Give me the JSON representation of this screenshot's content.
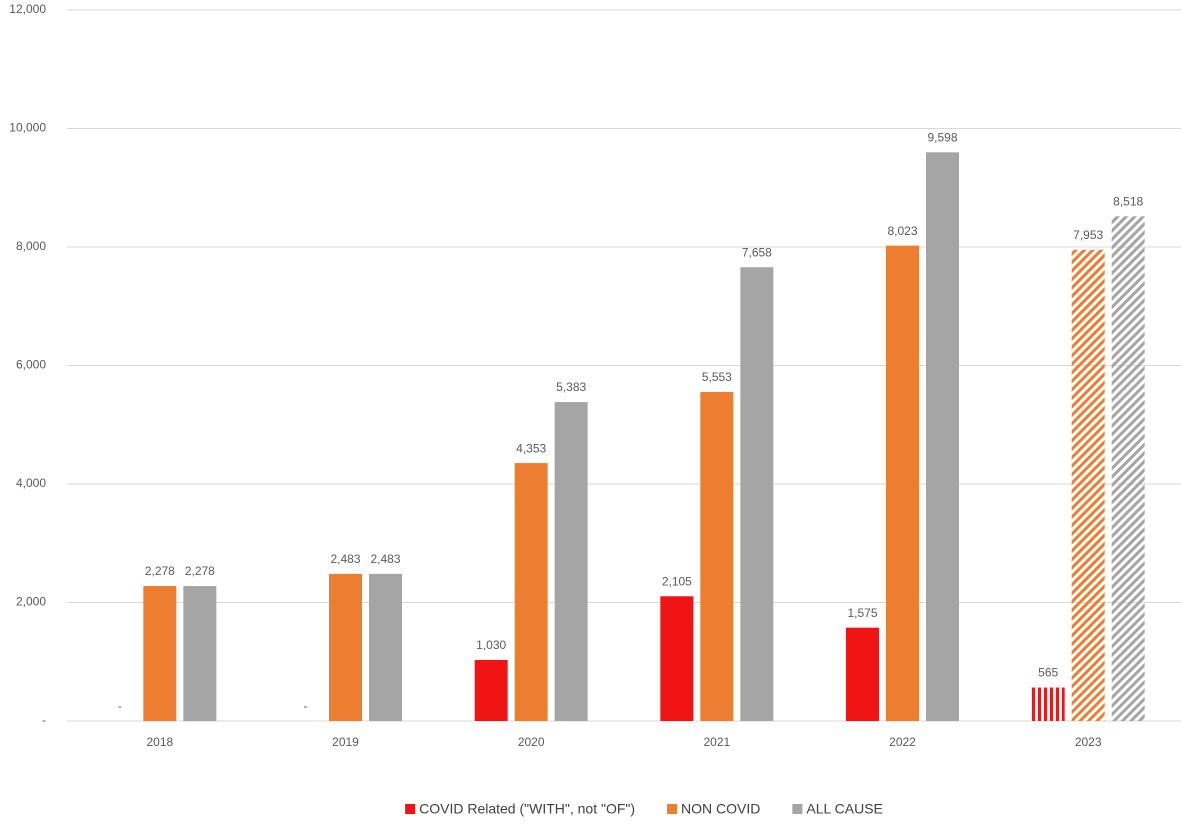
{
  "chart_data": {
    "type": "bar",
    "categories": [
      "2018",
      "2019",
      "2020",
      "2021",
      "2022",
      "2023"
    ],
    "hatched": [
      false,
      false,
      false,
      false,
      false,
      true
    ],
    "series": [
      {
        "name": "COVID Related (\"WITH\", not \"OF\")",
        "color": "#f01414",
        "hatch": "vertical",
        "values": [
          0,
          0,
          1030,
          2105,
          1575,
          565
        ],
        "value_labels": [
          "-",
          "-",
          "1,030",
          "2,105",
          "1,575",
          "565"
        ]
      },
      {
        "name": "NON COVID",
        "color": "#ed7d31",
        "hatch": "diagonal",
        "values": [
          2278,
          2483,
          4353,
          5553,
          8023,
          7953
        ],
        "value_labels": [
          "2,278",
          "2,483",
          "4,353",
          "5,553",
          "8,023",
          "7,953"
        ]
      },
      {
        "name": "ALL CAUSE",
        "color": "#a5a5a5",
        "hatch": "diagonal",
        "values": [
          2278,
          2483,
          5383,
          7658,
          9598,
          8518
        ],
        "value_labels": [
          "2,278",
          "2,483",
          "5,383",
          "7,658",
          "9,598",
          "8,518"
        ]
      }
    ],
    "ylim": [
      0,
      12000
    ],
    "yticks": [
      {
        "value": 0,
        "label": "-"
      },
      {
        "value": 2000,
        "label": "2,000"
      },
      {
        "value": 4000,
        "label": "4,000"
      },
      {
        "value": 6000,
        "label": "6,000"
      },
      {
        "value": 8000,
        "label": "8,000"
      },
      {
        "value": 10000,
        "label": "10,000"
      },
      {
        "value": 12000,
        "label": "12,000"
      }
    ],
    "grid": true,
    "legend": "bottom"
  }
}
